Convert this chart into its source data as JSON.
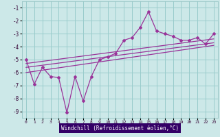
{
  "xlabel": "Windchill (Refroidissement éolien,°C)",
  "bg_color": "#cce8e8",
  "grid_color": "#99cccc",
  "line_color": "#993399",
  "label_bg": "#330066",
  "xlim": [
    -0.5,
    23.5
  ],
  "ylim": [
    -9.5,
    -0.5
  ],
  "yticks": [
    -1,
    -2,
    -3,
    -4,
    -5,
    -6,
    -7,
    -8,
    -9
  ],
  "xticks": [
    0,
    1,
    2,
    3,
    4,
    5,
    6,
    7,
    8,
    9,
    10,
    11,
    12,
    13,
    14,
    15,
    16,
    17,
    18,
    19,
    20,
    21,
    22,
    23
  ],
  "series1_x": [
    0,
    1,
    2,
    3,
    4,
    5,
    6,
    7,
    8,
    9,
    10,
    11,
    12,
    13,
    14,
    15,
    16,
    17,
    18,
    19,
    20,
    21,
    22,
    23
  ],
  "series1_y": [
    -5.0,
    -6.9,
    -5.6,
    -6.3,
    -6.4,
    -9.1,
    -6.3,
    -8.2,
    -6.3,
    -5.0,
    -4.8,
    -4.5,
    -3.5,
    -3.3,
    -2.5,
    -1.3,
    -2.8,
    -3.0,
    -3.2,
    -3.5,
    -3.5,
    -3.3,
    -3.8,
    -3.0
  ],
  "trend1_x": [
    0,
    23
  ],
  "trend1_y": [
    -5.3,
    -3.4
  ],
  "trend2_x": [
    0,
    23
  ],
  "trend2_y": [
    -5.6,
    -3.7
  ],
  "trend3_x": [
    0,
    23
  ],
  "trend3_y": [
    -6.0,
    -3.9
  ]
}
